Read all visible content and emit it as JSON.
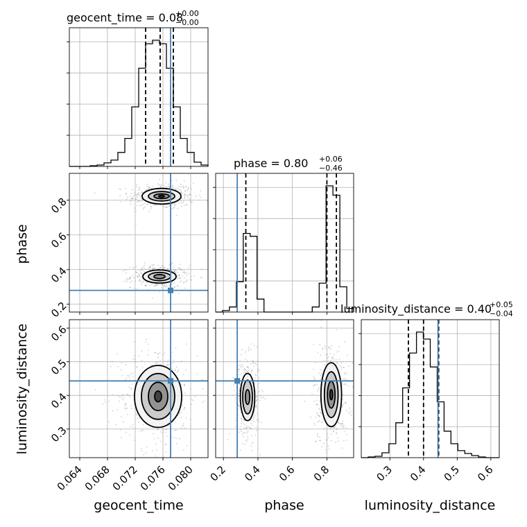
{
  "chart_data": {
    "type": "corner",
    "grid": true,
    "truth_color": "#4682b4",
    "parameters": [
      "geocent_time",
      "phase",
      "luminosity_distance"
    ],
    "truths": {
      "geocent_time": 0.0771,
      "phase": 0.28,
      "luminosity_distance": 0.443
    },
    "panels": {
      "geocent_time": {
        "title_main": "geocent_time = 0.08",
        "title_plus": "+0.00",
        "title_minus": "−0.00",
        "xlabel": "geocent_time",
        "xlim": [
          0.0625,
          0.0825
        ],
        "xticks": [
          0.064,
          0.068,
          0.072,
          0.076,
          0.08
        ],
        "xtick_labels": [
          "0.064",
          "0.068",
          "0.072",
          "0.076",
          "0.080"
        ],
        "quantiles": [
          0.0735,
          0.0756,
          0.0775
        ],
        "hist_edges": [
          0.0625,
          0.0635,
          0.0645,
          0.0655,
          0.0665,
          0.0675,
          0.0685,
          0.0695,
          0.0705,
          0.0715,
          0.0725,
          0.0735,
          0.0745,
          0.0755,
          0.0765,
          0.0775,
          0.0785,
          0.0795,
          0.0805,
          0.0815,
          0.0825
        ],
        "hist_counts": [
          0,
          0,
          0,
          1,
          2,
          5,
          9,
          20,
          40,
          85,
          140,
          175,
          180,
          175,
          140,
          85,
          40,
          20,
          6,
          2
        ]
      },
      "phase": {
        "title_main": "phase = 0.80",
        "title_plus": "+0.06",
        "title_minus": "−0.46",
        "ylabel": "phase",
        "xlabel": "phase",
        "lim": [
          0.155,
          0.955
        ],
        "ticks": [
          0.2,
          0.4,
          0.6,
          0.8
        ],
        "tick_labels": [
          "0.2",
          "0.4",
          "0.6",
          "0.8"
        ],
        "quantiles": [
          0.33,
          0.8,
          0.855
        ],
        "hist_edges": [
          0.155,
          0.195,
          0.235,
          0.275,
          0.315,
          0.355,
          0.395,
          0.435,
          0.475,
          0.515,
          0.555,
          0.595,
          0.635,
          0.675,
          0.715,
          0.755,
          0.795,
          0.835,
          0.875,
          0.915,
          0.955
        ],
        "hist_counts": [
          0,
          2,
          7,
          42,
          109,
          105,
          18,
          0,
          0,
          0,
          0,
          0,
          0,
          0,
          7,
          40,
          175,
          162,
          35,
          5
        ]
      },
      "luminosity_distance": {
        "title_main": "luminosity_distance = 0.40",
        "title_plus": "+0.05",
        "title_minus": "−0.04",
        "ylabel": "luminosity_distance",
        "xlabel": "luminosity_distance",
        "lim": [
          0.215,
          0.625
        ],
        "ticks": [
          0.3,
          0.4,
          0.5,
          0.6
        ],
        "tick_labels": [
          "0.3",
          "0.4",
          "0.5",
          "0.6"
        ],
        "quantiles": [
          0.355,
          0.4,
          0.445
        ],
        "hist_edges": [
          0.215,
          0.2355,
          0.256,
          0.2765,
          0.297,
          0.3175,
          0.338,
          0.3585,
          0.379,
          0.3995,
          0.42,
          0.4405,
          0.461,
          0.4815,
          0.502,
          0.5225,
          0.543,
          0.5635,
          0.584,
          0.6045,
          0.625
        ],
        "hist_counts": [
          0,
          1,
          2,
          7,
          20,
          50,
          100,
          150,
          180,
          170,
          130,
          80,
          38,
          20,
          10,
          6,
          3,
          1,
          0,
          0
        ]
      }
    },
    "contour_blobs": {
      "time_phase": [
        {
          "x": 0.0758,
          "y": 0.823,
          "levels": [
            [
              0.0028,
              0.045
            ],
            [
              0.0019,
              0.027
            ],
            [
              0.0011,
              0.014
            ],
            [
              0.0004,
              0.006
            ]
          ]
        },
        {
          "x": 0.0755,
          "y": 0.36,
          "levels": [
            [
              0.0024,
              0.038
            ],
            [
              0.0016,
              0.024
            ],
            [
              0.0008,
              0.012
            ]
          ]
        }
      ],
      "time_dist": [
        {
          "x": 0.0753,
          "y": 0.397,
          "levels": [
            [
              0.0034,
              0.092
            ],
            [
              0.0024,
              0.068
            ],
            [
              0.0014,
              0.042
            ],
            [
              0.0005,
              0.016
            ]
          ]
        }
      ],
      "phase_dist": [
        {
          "x": 0.34,
          "y": 0.395,
          "levels": [
            [
              0.042,
              0.07
            ],
            [
              0.028,
              0.05
            ],
            [
              0.013,
              0.022
            ]
          ]
        },
        {
          "x": 0.825,
          "y": 0.402,
          "levels": [
            [
              0.06,
              0.095
            ],
            [
              0.04,
              0.068
            ],
            [
              0.022,
              0.04
            ],
            [
              0.008,
              0.015
            ]
          ]
        }
      ]
    }
  }
}
